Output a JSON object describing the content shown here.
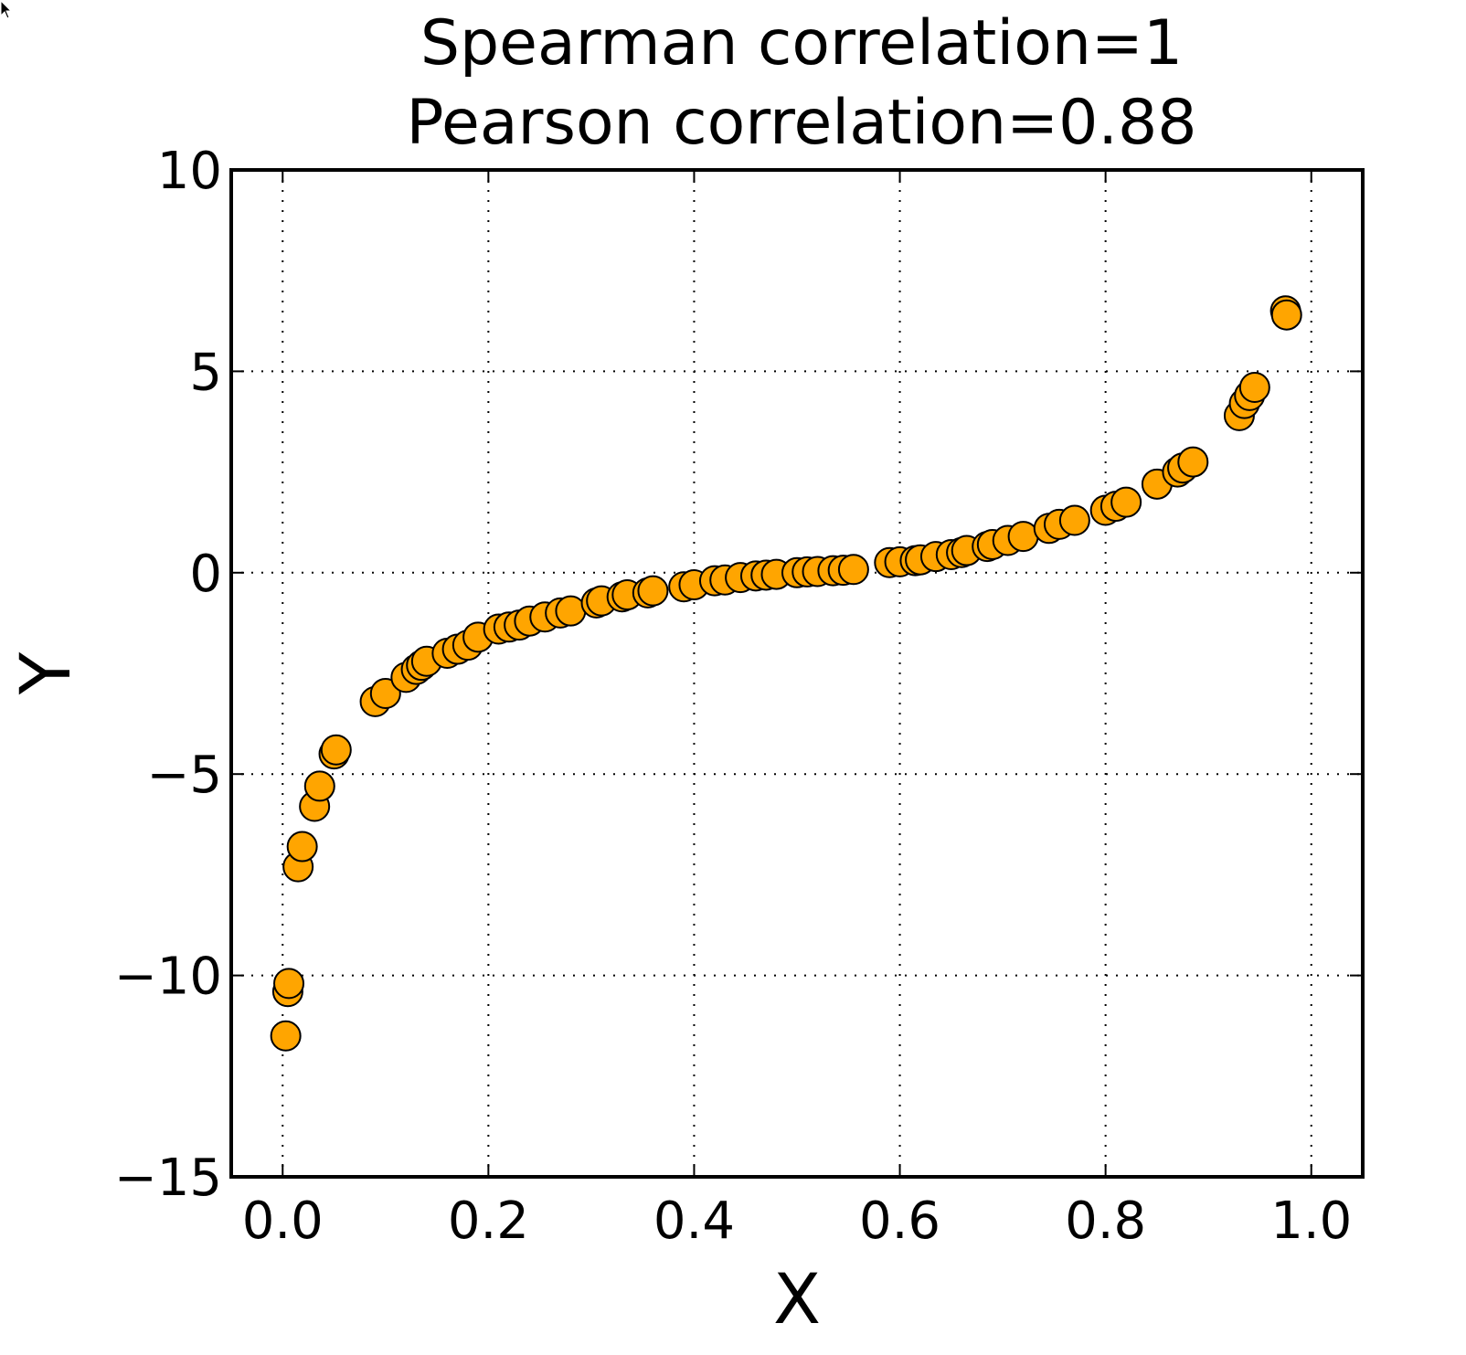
{
  "chart_data": {
    "type": "scatter",
    "title_lines": [
      "Spearman correlation=1",
      "Pearson correlation=0.88"
    ],
    "xlabel": "X",
    "ylabel": "Y",
    "xlim": [
      -0.05,
      1.05
    ],
    "ylim": [
      -15,
      10
    ],
    "xticks": [
      0.0,
      0.2,
      0.4,
      0.6,
      0.8,
      1.0
    ],
    "xtick_labels": [
      "0.0",
      "0.2",
      "0.4",
      "0.6",
      "0.8",
      "1.0"
    ],
    "yticks": [
      -15,
      -10,
      -5,
      0,
      5,
      10
    ],
    "ytick_labels": [
      "−15",
      "−10",
      "−5",
      "0",
      "5",
      "10"
    ],
    "grid": true,
    "grid_style": "dotted",
    "marker_color": "#ffa500",
    "marker_edge_color": "#000000",
    "series": [
      {
        "x": [
          0.003,
          0.005,
          0.006,
          0.015,
          0.019,
          0.031,
          0.036,
          0.05,
          0.052,
          0.09,
          0.1,
          0.12,
          0.13,
          0.135,
          0.14,
          0.16,
          0.17,
          0.18,
          0.19,
          0.21,
          0.22,
          0.23,
          0.24,
          0.255,
          0.27,
          0.28,
          0.305,
          0.31,
          0.33,
          0.335,
          0.355,
          0.36,
          0.39,
          0.4,
          0.42,
          0.43,
          0.445,
          0.46,
          0.47,
          0.48,
          0.5,
          0.51,
          0.52,
          0.535,
          0.545,
          0.555,
          0.59,
          0.6,
          0.615,
          0.62,
          0.635,
          0.65,
          0.66,
          0.665,
          0.685,
          0.69,
          0.705,
          0.72,
          0.745,
          0.755,
          0.77,
          0.8,
          0.81,
          0.82,
          0.85,
          0.87,
          0.875,
          0.885,
          0.93,
          0.935,
          0.94,
          0.945,
          0.975,
          0.976
        ],
        "y": [
          -11.5,
          -10.4,
          -10.2,
          -7.3,
          -6.8,
          -5.8,
          -5.3,
          -4.5,
          -4.4,
          -3.2,
          -3.0,
          -2.6,
          -2.4,
          -2.3,
          -2.2,
          -2.0,
          -1.9,
          -1.8,
          -1.6,
          -1.4,
          -1.35,
          -1.3,
          -1.2,
          -1.1,
          -1.0,
          -0.95,
          -0.75,
          -0.7,
          -0.6,
          -0.55,
          -0.5,
          -0.45,
          -0.35,
          -0.3,
          -0.2,
          -0.18,
          -0.12,
          -0.08,
          -0.06,
          -0.04,
          0.0,
          0.02,
          0.03,
          0.05,
          0.06,
          0.08,
          0.25,
          0.27,
          0.3,
          0.32,
          0.4,
          0.45,
          0.5,
          0.55,
          0.65,
          0.7,
          0.8,
          0.9,
          1.1,
          1.2,
          1.3,
          1.55,
          1.65,
          1.75,
          2.2,
          2.5,
          2.6,
          2.75,
          3.9,
          4.2,
          4.4,
          4.6,
          6.5,
          6.4
        ]
      }
    ]
  }
}
